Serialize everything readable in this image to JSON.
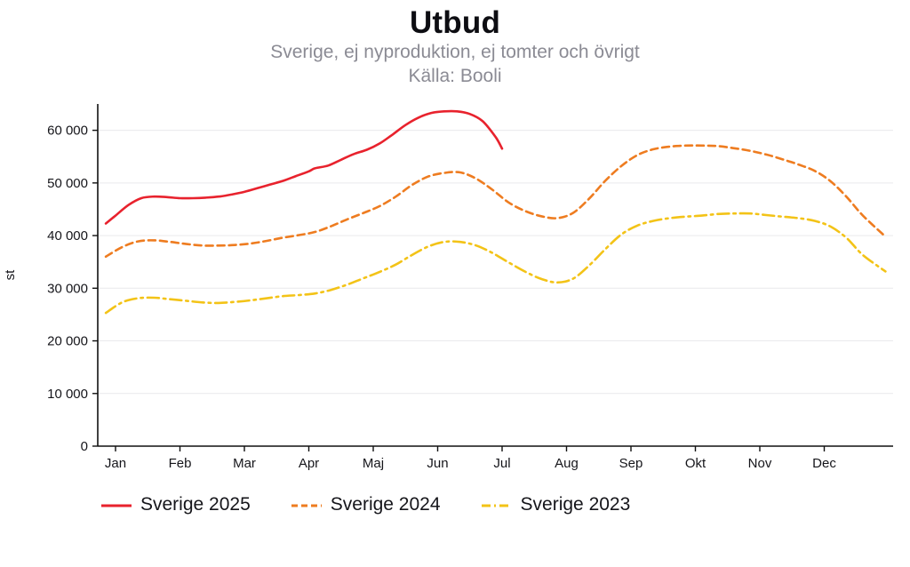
{
  "chart_data": {
    "type": "line",
    "title": "Utbud",
    "subtitle": "Sverige, ej nyproduktion, ej tomter och övrigt",
    "source": "Källa: Booli",
    "ylabel": "st",
    "xlabel": "",
    "ylim": [
      0,
      65000
    ],
    "ytick_step": 10000,
    "ytick_labels": [
      "0",
      "10 000",
      "20 000",
      "30 000",
      "40 000",
      "50 000",
      "60 000"
    ],
    "x_categories": [
      "Jan",
      "Feb",
      "Mar",
      "Apr",
      "Maj",
      "Jun",
      "Jul",
      "Aug",
      "Sep",
      "Okt",
      "Nov",
      "Dec"
    ],
    "grid": "horizontal",
    "grid_color": "#e9e9ec",
    "axis_color": "#111111",
    "legend_position": "bottom-left",
    "series": [
      {
        "name": "Sverige 2025",
        "color": "#e8222d",
        "dash": "solid",
        "x": [
          -0.15,
          0,
          0.2,
          0.4,
          0.6,
          0.8,
          1.0,
          1.2,
          1.4,
          1.6,
          1.8,
          2.0,
          2.2,
          2.4,
          2.6,
          2.8,
          3.0,
          3.1,
          3.3,
          3.5,
          3.7,
          3.9,
          4.1,
          4.3,
          4.5,
          4.7,
          4.9,
          5.1,
          5.3,
          5.5,
          5.7,
          5.9,
          6.0
        ],
        "values": [
          42300,
          43800,
          45800,
          47100,
          47400,
          47300,
          47100,
          47100,
          47200,
          47400,
          47800,
          48300,
          49000,
          49700,
          50400,
          51300,
          52200,
          52800,
          53300,
          54400,
          55500,
          56300,
          57500,
          59200,
          61000,
          62400,
          63300,
          63600,
          63600,
          63100,
          61700,
          58700,
          56500
        ]
      },
      {
        "name": "Sverige 2024",
        "color": "#ee7c20",
        "dash": "dashed",
        "x": [
          -0.15,
          0.1,
          0.35,
          0.6,
          0.85,
          1.1,
          1.35,
          1.6,
          1.85,
          2.1,
          2.35,
          2.6,
          2.85,
          3.1,
          3.35,
          3.6,
          3.85,
          4.1,
          4.35,
          4.6,
          4.85,
          5.1,
          5.35,
          5.6,
          5.85,
          6.1,
          6.35,
          6.6,
          6.85,
          7.1,
          7.35,
          7.6,
          7.85,
          8.1,
          8.35,
          8.6,
          8.85,
          9.1,
          9.35,
          9.6,
          9.85,
          10.1,
          10.35,
          10.6,
          10.85,
          11.1,
          11.35,
          11.6,
          11.95
        ],
        "values": [
          36000,
          37800,
          38900,
          39100,
          38800,
          38400,
          38100,
          38100,
          38200,
          38500,
          39000,
          39600,
          40100,
          40700,
          41800,
          43100,
          44300,
          45600,
          47400,
          49600,
          51200,
          51900,
          52000,
          50800,
          48700,
          46300,
          44700,
          43700,
          43300,
          44300,
          47000,
          50400,
          53200,
          55300,
          56400,
          56900,
          57100,
          57100,
          57000,
          56600,
          56100,
          55400,
          54500,
          53500,
          52300,
          50300,
          47300,
          43800,
          39800
        ]
      },
      {
        "name": "Sverige 2023",
        "color": "#f3c317",
        "dash": "dashdot",
        "x": [
          -0.15,
          0.1,
          0.35,
          0.6,
          0.85,
          1.1,
          1.35,
          1.6,
          1.85,
          2.1,
          2.35,
          2.6,
          2.85,
          3.1,
          3.35,
          3.6,
          3.85,
          4.1,
          4.35,
          4.6,
          4.85,
          5.1,
          5.35,
          5.6,
          5.85,
          6.1,
          6.35,
          6.6,
          6.85,
          7.1,
          7.35,
          7.6,
          7.85,
          8.1,
          8.35,
          8.6,
          8.85,
          9.1,
          9.35,
          9.6,
          9.85,
          10.1,
          10.35,
          10.6,
          10.85,
          11.1,
          11.35,
          11.6,
          11.95
        ],
        "values": [
          25300,
          27300,
          28100,
          28200,
          27900,
          27600,
          27300,
          27200,
          27400,
          27700,
          28100,
          28500,
          28700,
          29000,
          29700,
          30700,
          31900,
          33100,
          34500,
          36300,
          37900,
          38800,
          38800,
          38100,
          36700,
          34900,
          33200,
          31800,
          31100,
          31800,
          34300,
          37400,
          40200,
          41900,
          42800,
          43300,
          43600,
          43800,
          44100,
          44200,
          44200,
          43900,
          43600,
          43300,
          42800,
          41700,
          39500,
          36300,
          33200
        ]
      }
    ]
  }
}
